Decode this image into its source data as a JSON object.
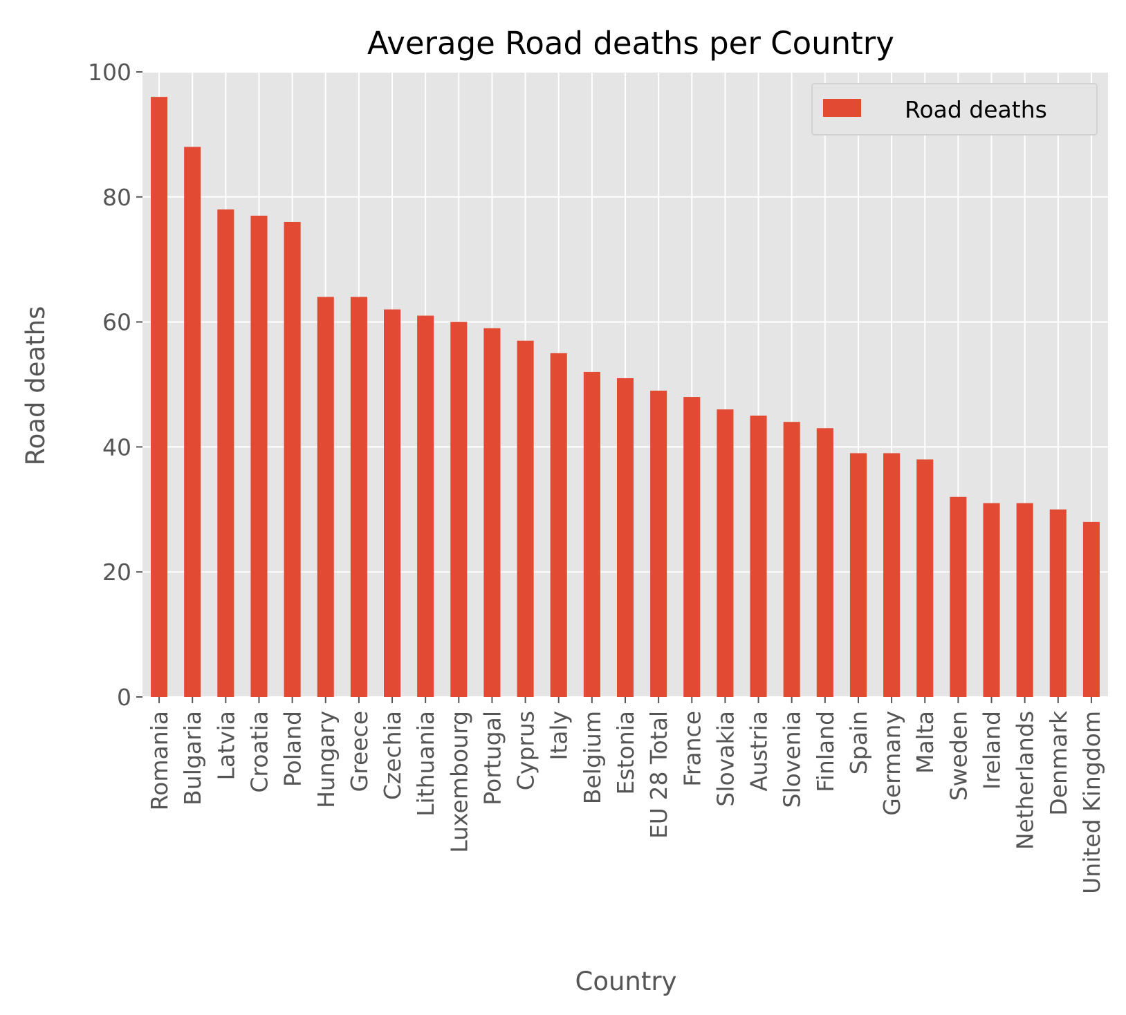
{
  "chart_data": {
    "type": "bar",
    "title": "Average Road deaths per Country",
    "xlabel": "Country",
    "ylabel": "Road deaths",
    "ylim": [
      0,
      100
    ],
    "yticks": [
      0,
      20,
      40,
      60,
      80,
      100
    ],
    "grid": true,
    "legend_position": "top-right",
    "categories": [
      "Romania",
      "Bulgaria",
      "Latvia",
      "Croatia",
      "Poland",
      "Hungary",
      "Greece",
      "Czechia",
      "Lithuania",
      "Luxembourg",
      "Portugal",
      "Cyprus",
      "Italy",
      "Belgium",
      "Estonia",
      "EU 28 Total",
      "France",
      "Slovakia",
      "Austria",
      "Slovenia",
      "Finland",
      "Spain",
      "Germany",
      "Malta",
      "Sweden",
      "Ireland",
      "Netherlands",
      "Denmark",
      "United Kingdom"
    ],
    "series": [
      {
        "name": "Road deaths",
        "color": "#E24A33",
        "values": [
          96,
          88,
          78,
          77,
          76,
          64,
          64,
          62,
          61,
          60,
          59,
          57,
          55,
          52,
          51,
          49,
          48,
          46,
          45,
          44,
          43,
          39,
          39,
          38,
          32,
          31,
          31,
          30,
          28
        ]
      }
    ],
    "colors": {
      "plot_background": "#E5E5E5",
      "grid": "#FFFFFF",
      "tick_text": "#555555",
      "title_text": "#000000",
      "legend_border": "#CCCCCC"
    }
  }
}
